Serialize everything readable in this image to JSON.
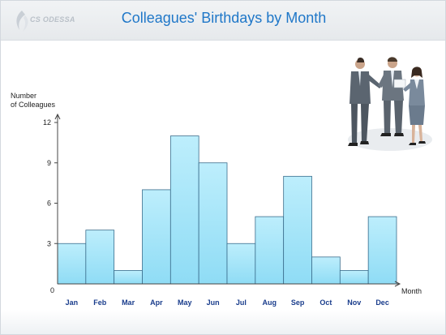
{
  "header": {
    "logo_text": "CS ODESSA",
    "title": "Colleagues' Birthdays by Month"
  },
  "chart_data": {
    "type": "bar",
    "title": "Colleagues' Birthdays by Month",
    "ylabel_lines": [
      "Number",
      "of Colleagues"
    ],
    "xlabel": "Month",
    "categories": [
      "Jan",
      "Feb",
      "Mar",
      "Apr",
      "May",
      "Jun",
      "Jul",
      "Aug",
      "Sep",
      "Oct",
      "Nov",
      "Dec"
    ],
    "values": [
      3,
      4,
      1,
      7,
      11,
      9,
      3,
      5,
      8,
      2,
      1,
      5
    ],
    "ylim": [
      0,
      12
    ],
    "yticks": [
      3,
      6,
      9,
      12
    ],
    "zero_label": "0",
    "grid": false,
    "bar_fill_top": "#bdeefc",
    "bar_fill_bottom": "#8fdcf5",
    "bar_stroke": "#3a6d8c"
  },
  "colors": {
    "title": "#1f77c8",
    "category_labels": "#1a3d8c",
    "axis": "#444444"
  },
  "illustration": {
    "icon": "business-people-handshake-icon"
  }
}
